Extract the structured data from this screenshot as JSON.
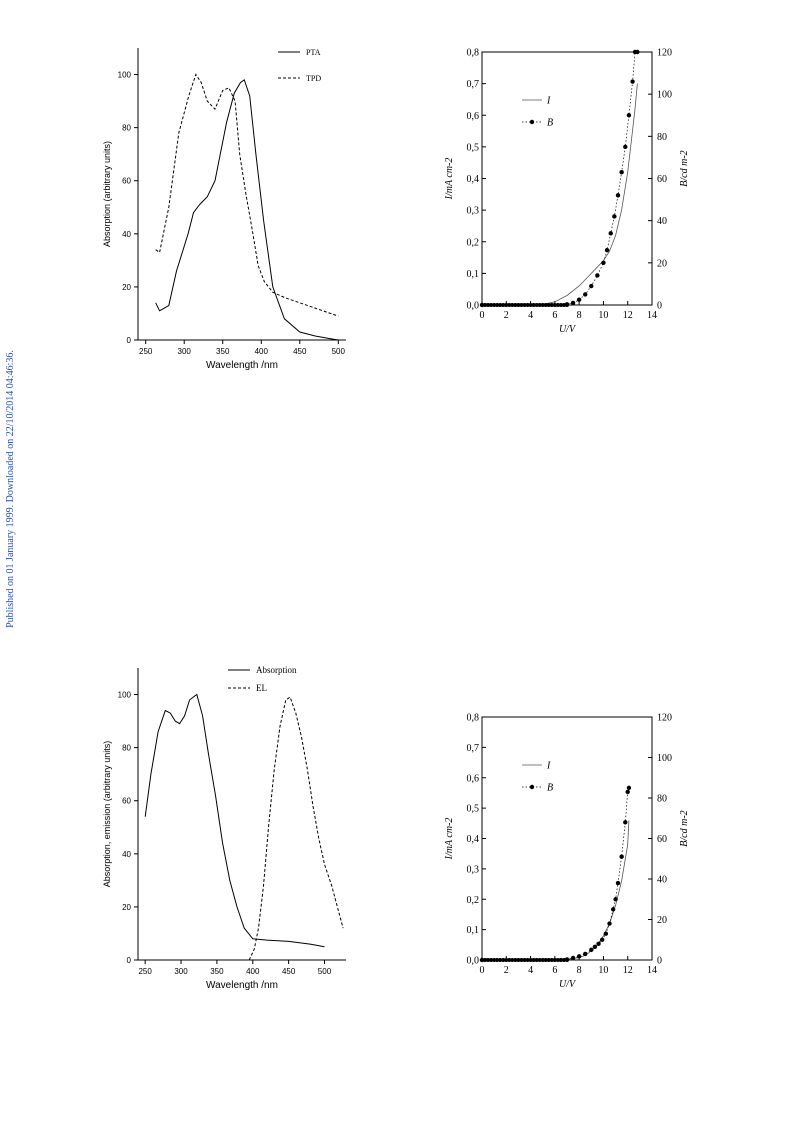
{
  "sidebar_note": "Published on 01 January 1999. Downloaded on 22/10/2014 04:46:36.",
  "chart_data": [
    {
      "type": "line",
      "xlabel": "Wavelength /nm",
      "ylabel": "Absorption (arbitrary units)",
      "xlim": [
        240,
        510
      ],
      "ylim": [
        0,
        110
      ],
      "xticks": [
        "250",
        "300",
        "350",
        "400",
        "450",
        "500"
      ],
      "yticks": [
        "0",
        "20",
        "40",
        "60",
        "80",
        "100"
      ],
      "legend_position": "top-right",
      "series": [
        {
          "name": "PTA",
          "style": "solid",
          "x": [
            263,
            268,
            280,
            290,
            305,
            312,
            320,
            330,
            340,
            355,
            365,
            373,
            378,
            385,
            393,
            403,
            415,
            430,
            450,
            470,
            490,
            500
          ],
          "y": [
            14,
            11,
            13,
            26,
            40,
            48,
            51,
            54,
            60,
            82,
            93,
            97,
            98,
            92,
            70,
            45,
            20,
            8,
            3,
            1.5,
            0.5,
            0
          ]
        },
        {
          "name": "TPD",
          "style": "dashed",
          "x": [
            263,
            268,
            280,
            293,
            306,
            315,
            322,
            330,
            340,
            350,
            358,
            366,
            372,
            380,
            388,
            396,
            404,
            415,
            430,
            450,
            470,
            490,
            500
          ],
          "y": [
            34,
            33,
            50,
            78,
            92,
            100,
            97,
            90,
            87,
            94,
            95,
            90,
            70,
            55,
            42,
            28,
            22,
            18,
            16,
            14,
            12,
            10,
            9
          ]
        }
      ]
    },
    {
      "type": "line",
      "xlabel": "U/V",
      "ylabel": "I/mA cm-2",
      "ylabel2": "B/cd m-2",
      "xlim": [
        0,
        14
      ],
      "ylim": [
        0,
        0.8
      ],
      "ylim2": [
        0,
        120
      ],
      "xticks": [
        "0",
        "2",
        "4",
        "6",
        "8",
        "10",
        "12",
        "14"
      ],
      "yticks": [
        "0,0",
        "0,1",
        "0,2",
        "0,3",
        "0,4",
        "0,5",
        "0,6",
        "0,7",
        "0,8"
      ],
      "yticks2": [
        "0",
        "20",
        "40",
        "60",
        "80",
        "100",
        "120"
      ],
      "legend_position": "top-left",
      "series": [
        {
          "name": "I",
          "style": "solid",
          "axis": "left",
          "x": [
            0,
            5,
            6,
            7,
            8,
            9,
            10,
            10.5,
            11,
            11.5,
            12,
            12.3,
            12.6,
            12.8
          ],
          "y": [
            0,
            0.002,
            0.01,
            0.03,
            0.06,
            0.1,
            0.14,
            0.17,
            0.22,
            0.3,
            0.42,
            0.52,
            0.62,
            0.7
          ]
        },
        {
          "name": "B",
          "style": "dotted",
          "axis": "right",
          "x": [
            0,
            7,
            7.5,
            8,
            8.5,
            9,
            9.5,
            10,
            10.3,
            10.6,
            10.9,
            11.2,
            11.5,
            11.8,
            12.1,
            12.4,
            12.6,
            12.8
          ],
          "y": [
            0,
            0.3,
            1,
            2.5,
            5,
            9,
            14,
            20,
            26,
            34,
            42,
            52,
            63,
            75,
            90,
            106,
            120,
            120
          ]
        }
      ]
    },
    {
      "type": "line",
      "xlabel": "Wavelength /nm",
      "ylabel": "Absorption, emission (arbitrary units)",
      "xlim": [
        240,
        530
      ],
      "ylim": [
        0,
        110
      ],
      "xticks": [
        "250",
        "300",
        "350",
        "400",
        "450",
        "500"
      ],
      "yticks": [
        "0",
        "20",
        "40",
        "60",
        "80",
        "100"
      ],
      "legend_position": "top-right",
      "series": [
        {
          "name": "Absorption",
          "style": "solid",
          "x": [
            250,
            258,
            268,
            278,
            285,
            292,
            298,
            305,
            312,
            322,
            330,
            338,
            348,
            358,
            368,
            378,
            388,
            400,
            420,
            450,
            480,
            500
          ],
          "y": [
            54,
            70,
            86,
            94,
            93,
            90,
            89,
            92,
            98,
            100,
            92,
            78,
            62,
            44,
            30,
            20,
            12,
            8,
            7.5,
            7,
            6,
            5
          ]
        },
        {
          "name": "EL",
          "style": "dashed",
          "x": [
            395,
            402,
            408,
            415,
            422,
            430,
            438,
            446,
            452,
            460,
            468,
            476,
            484,
            492,
            500,
            510,
            520,
            526
          ],
          "y": [
            0,
            4,
            12,
            28,
            50,
            72,
            88,
            98,
            99,
            93,
            84,
            72,
            58,
            46,
            36,
            28,
            18,
            12
          ]
        }
      ]
    },
    {
      "type": "line",
      "xlabel": "U/V",
      "ylabel": "I/mA cm-2",
      "ylabel2": "B/cd m-2",
      "xlim": [
        0,
        14
      ],
      "ylim": [
        0,
        0.8
      ],
      "ylim2": [
        0,
        120
      ],
      "xticks": [
        "0",
        "2",
        "4",
        "6",
        "8",
        "10",
        "12",
        "14"
      ],
      "yticks": [
        "0,0",
        "0,1",
        "0,2",
        "0,3",
        "0,4",
        "0,5",
        "0,6",
        "0,7",
        "0,8"
      ],
      "yticks2": [
        "0",
        "20",
        "40",
        "60",
        "80",
        "100",
        "120"
      ],
      "legend_position": "top-left",
      "series": [
        {
          "name": "I",
          "style": "solid",
          "axis": "left",
          "x": [
            0,
            7,
            8,
            8.5,
            9,
            9.5,
            10,
            10.5,
            11,
            11.5,
            12,
            12.1
          ],
          "y": [
            0,
            0.002,
            0.008,
            0.015,
            0.03,
            0.05,
            0.08,
            0.12,
            0.18,
            0.26,
            0.38,
            0.46
          ]
        },
        {
          "name": "B",
          "style": "dotted",
          "axis": "right",
          "x": [
            0,
            7,
            7.5,
            8,
            8.5,
            9,
            9.3,
            9.6,
            9.9,
            10.2,
            10.5,
            10.8,
            11,
            11.2,
            11.5,
            11.8,
            12,
            12.1
          ],
          "y": [
            0,
            0.3,
            1,
            1.8,
            3,
            5,
            6.5,
            8,
            10,
            13,
            18,
            25,
            30,
            38,
            51,
            68,
            83,
            85
          ]
        }
      ]
    }
  ]
}
